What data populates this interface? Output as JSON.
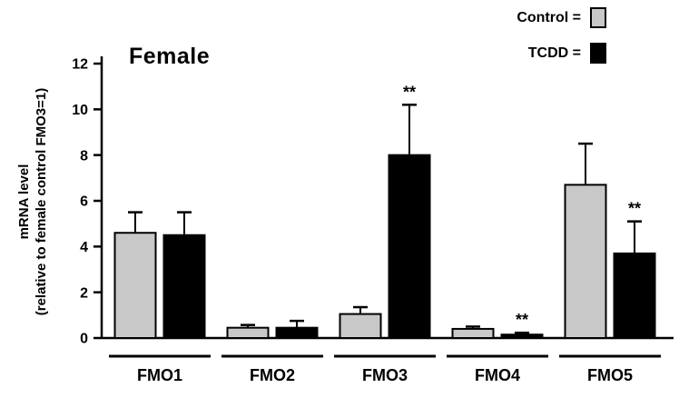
{
  "chart_data": {
    "type": "bar",
    "title": "Female",
    "ylabel_line1": "mRNA level",
    "ylabel_line2": "(relative to female control FMO3=1)",
    "categories": [
      "FMO1",
      "FMO2",
      "FMO3",
      "FMO4",
      "FMO5"
    ],
    "series": [
      {
        "name": "Control",
        "color": "#c8c8c8",
        "values": [
          4.6,
          0.45,
          1.05,
          0.4,
          6.7
        ],
        "errors": [
          0.9,
          0.12,
          0.3,
          0.1,
          1.8
        ],
        "sig": [
          "",
          "",
          "",
          "",
          ""
        ]
      },
      {
        "name": "TCDD",
        "color": "#000000",
        "values": [
          4.5,
          0.45,
          8.0,
          0.15,
          3.7
        ],
        "errors": [
          1.0,
          0.3,
          2.2,
          0.08,
          1.4
        ],
        "sig": [
          "",
          "",
          "**",
          "**",
          "**"
        ]
      }
    ],
    "ylim": [
      0,
      12
    ],
    "yticks": [
      0,
      2,
      4,
      6,
      8,
      10,
      12
    ],
    "legend": [
      {
        "label": "Control =",
        "swatch": "#c8c8c8"
      },
      {
        "label": "TCDD  =",
        "swatch": "#000000"
      }
    ]
  }
}
